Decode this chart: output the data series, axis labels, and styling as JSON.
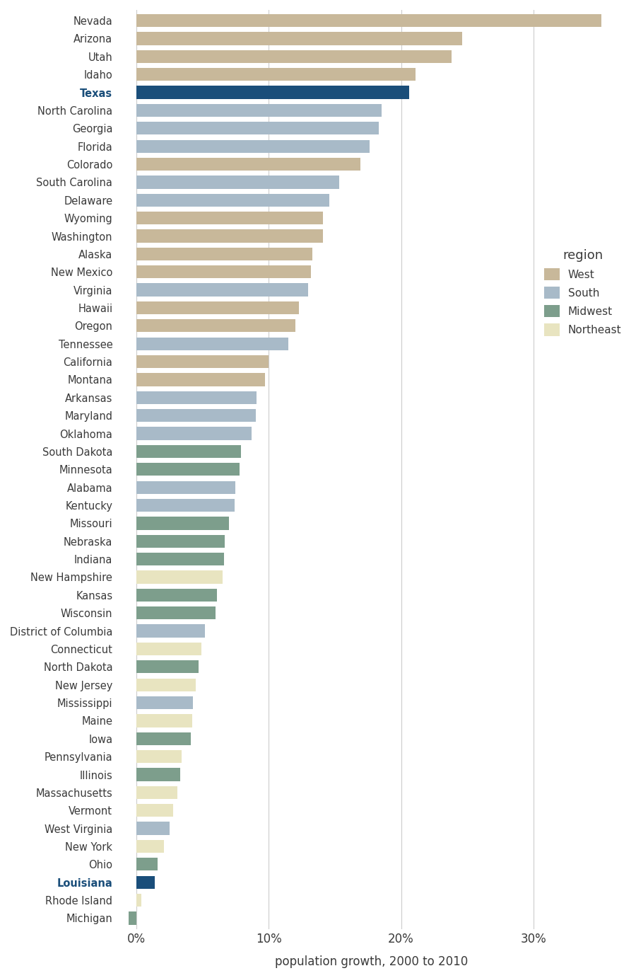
{
  "states": [
    {
      "name": "Nevada",
      "value": 35.1,
      "region": "West"
    },
    {
      "name": "Arizona",
      "value": 24.6,
      "region": "West"
    },
    {
      "name": "Utah",
      "value": 23.8,
      "region": "West"
    },
    {
      "name": "Idaho",
      "value": 21.1,
      "region": "West"
    },
    {
      "name": "Texas",
      "value": 20.6,
      "region": "South",
      "highlight": true
    },
    {
      "name": "North Carolina",
      "value": 18.5,
      "region": "South"
    },
    {
      "name": "Georgia",
      "value": 18.3,
      "region": "South"
    },
    {
      "name": "Florida",
      "value": 17.6,
      "region": "South"
    },
    {
      "name": "Colorado",
      "value": 16.9,
      "region": "West"
    },
    {
      "name": "South Carolina",
      "value": 15.3,
      "region": "South"
    },
    {
      "name": "Delaware",
      "value": 14.6,
      "region": "South"
    },
    {
      "name": "Wyoming",
      "value": 14.1,
      "region": "West"
    },
    {
      "name": "Washington",
      "value": 14.1,
      "region": "West"
    },
    {
      "name": "Alaska",
      "value": 13.3,
      "region": "West"
    },
    {
      "name": "New Mexico",
      "value": 13.2,
      "region": "West"
    },
    {
      "name": "Virginia",
      "value": 13.0,
      "region": "South"
    },
    {
      "name": "Hawaii",
      "value": 12.3,
      "region": "West"
    },
    {
      "name": "Oregon",
      "value": 12.0,
      "region": "West"
    },
    {
      "name": "Tennessee",
      "value": 11.5,
      "region": "South"
    },
    {
      "name": "California",
      "value": 10.0,
      "region": "West"
    },
    {
      "name": "Montana",
      "value": 9.7,
      "region": "West"
    },
    {
      "name": "Arkansas",
      "value": 9.1,
      "region": "South"
    },
    {
      "name": "Maryland",
      "value": 9.0,
      "region": "South"
    },
    {
      "name": "Oklahoma",
      "value": 8.7,
      "region": "South"
    },
    {
      "name": "South Dakota",
      "value": 7.9,
      "region": "Midwest"
    },
    {
      "name": "Minnesota",
      "value": 7.8,
      "region": "Midwest"
    },
    {
      "name": "Alabama",
      "value": 7.5,
      "region": "South"
    },
    {
      "name": "Kentucky",
      "value": 7.4,
      "region": "South"
    },
    {
      "name": "Missouri",
      "value": 7.0,
      "region": "Midwest"
    },
    {
      "name": "Nebraska",
      "value": 6.7,
      "region": "Midwest"
    },
    {
      "name": "Indiana",
      "value": 6.6,
      "region": "Midwest"
    },
    {
      "name": "New Hampshire",
      "value": 6.5,
      "region": "Northeast"
    },
    {
      "name": "Kansas",
      "value": 6.1,
      "region": "Midwest"
    },
    {
      "name": "Wisconsin",
      "value": 6.0,
      "region": "Midwest"
    },
    {
      "name": "District of Columbia",
      "value": 5.2,
      "region": "South"
    },
    {
      "name": "Connecticut",
      "value": 4.9,
      "region": "Northeast"
    },
    {
      "name": "North Dakota",
      "value": 4.7,
      "region": "Midwest"
    },
    {
      "name": "New Jersey",
      "value": 4.5,
      "region": "Northeast"
    },
    {
      "name": "Mississippi",
      "value": 4.3,
      "region": "South"
    },
    {
      "name": "Maine",
      "value": 4.2,
      "region": "Northeast"
    },
    {
      "name": "Iowa",
      "value": 4.1,
      "region": "Midwest"
    },
    {
      "name": "Pennsylvania",
      "value": 3.4,
      "region": "Northeast"
    },
    {
      "name": "Illinois",
      "value": 3.3,
      "region": "Midwest"
    },
    {
      "name": "Massachusetts",
      "value": 3.1,
      "region": "Northeast"
    },
    {
      "name": "Vermont",
      "value": 2.8,
      "region": "Northeast"
    },
    {
      "name": "West Virginia",
      "value": 2.5,
      "region": "South"
    },
    {
      "name": "New York",
      "value": 2.1,
      "region": "Northeast"
    },
    {
      "name": "Ohio",
      "value": 1.6,
      "region": "Midwest"
    },
    {
      "name": "Louisiana",
      "value": 1.4,
      "region": "South",
      "highlight": true
    },
    {
      "name": "Rhode Island",
      "value": 0.4,
      "region": "Northeast"
    },
    {
      "name": "Michigan",
      "value": -0.6,
      "region": "Midwest"
    }
  ],
  "region_colors": {
    "West": "#c8b89a",
    "South": "#a8bac8",
    "Midwest": "#7d9e8c",
    "Northeast": "#e8e4c0"
  },
  "highlight_color": "#1a4e7a",
  "xlabel": "population growth, 2000 to 2010",
  "xlim": [
    -1.5,
    37
  ],
  "xticks": [
    0,
    10,
    20,
    30
  ],
  "xticklabels": [
    "0%",
    "10%",
    "20%",
    "30%"
  ],
  "grid_color": "#cccccc",
  "background_color": "#ffffff",
  "legend_title": "region",
  "legend_items": [
    "West",
    "South",
    "Midwest",
    "Northeast"
  ],
  "bar_height": 0.72
}
